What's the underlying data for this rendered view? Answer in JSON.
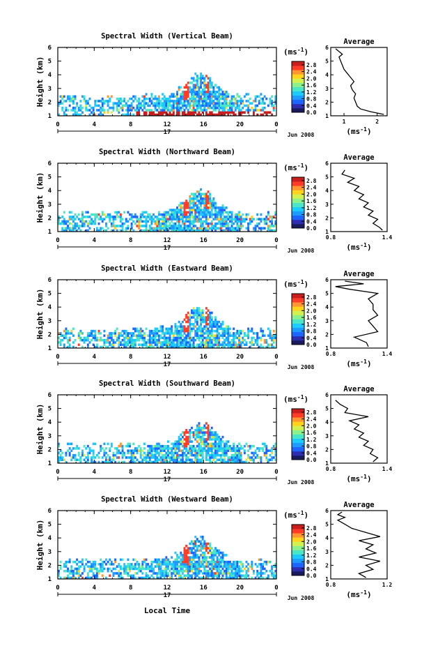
{
  "figure": {
    "unit_label": "(ms",
    "unit_exp": "-1",
    "unit_close": ")",
    "date_label": "Jun 2008",
    "day_label": "17",
    "xlabel": "Local Time",
    "ylabel": "Height (km)",
    "avg_title": "Average",
    "colors": {
      "palette": [
        "#1a1a5e",
        "#2d2db0",
        "#1e64ff",
        "#1e9bff",
        "#1ecbff",
        "#4be6c8",
        "#8cf08c",
        "#d2f050",
        "#ffd21e",
        "#ff9632",
        "#ff3c28",
        "#c81e1e"
      ]
    }
  },
  "chart_data": [
    {
      "type": "heatmap",
      "title": "Spectral Width (Vertical Beam)",
      "x_ticks": [
        "0",
        "4",
        "8",
        "12",
        "16",
        "20",
        "0"
      ],
      "xlim": [
        0,
        24
      ],
      "y_ticks": [
        "1",
        "2",
        "3",
        "4",
        "5",
        "6"
      ],
      "ylim": [
        1,
        6
      ],
      "colorbar_ticks": [
        "0.0",
        "0.4",
        "0.8",
        "1.2",
        "1.6",
        "2.0",
        "2.4",
        "2.8"
      ],
      "colorbar_range": [
        0.0,
        3.0
      ],
      "average_profile": {
        "x_ticks": [
          "1",
          "2"
        ],
        "xlim": [
          0.6,
          2.3
        ],
        "height": [
          1.1,
          1.3,
          1.5,
          1.7,
          2.0,
          2.3,
          2.6,
          2.9,
          3.2,
          3.5,
          3.8,
          4.1,
          4.4,
          4.7,
          5.0,
          5.3,
          5.5,
          5.7,
          5.9
        ],
        "value": [
          2.2,
          1.8,
          1.5,
          1.4,
          1.35,
          1.3,
          1.35,
          1.25,
          1.2,
          1.3,
          1.2,
          1.1,
          1.0,
          0.95,
          0.9,
          0.85,
          0.95,
          0.85,
          0.75
        ]
      }
    },
    {
      "type": "heatmap",
      "title": "Spectral Width (Northward Beam)",
      "x_ticks": [
        "0",
        "4",
        "8",
        "12",
        "16",
        "20",
        "0"
      ],
      "xlim": [
        0,
        24
      ],
      "y_ticks": [
        "1",
        "2",
        "3",
        "4",
        "5",
        "6"
      ],
      "ylim": [
        1,
        6
      ],
      "colorbar_ticks": [
        "0.0",
        "0.4",
        "0.8",
        "1.2",
        "1.6",
        "2.0",
        "2.4",
        "2.8"
      ],
      "colorbar_range": [
        0.0,
        3.0
      ],
      "average_profile": {
        "x_ticks": [
          "0.8",
          "1.4"
        ],
        "xlim": [
          0.8,
          1.4
        ],
        "height": [
          1.1,
          1.3,
          1.6,
          1.9,
          2.2,
          2.5,
          2.8,
          3.1,
          3.4,
          3.7,
          4.0,
          4.3,
          4.6,
          4.9,
          5.2,
          5.5
        ],
        "value": [
          1.35,
          1.32,
          1.25,
          1.3,
          1.2,
          1.25,
          1.15,
          1.2,
          1.1,
          1.15,
          1.05,
          1.1,
          0.98,
          1.05,
          0.92,
          0.95
        ]
      }
    },
    {
      "type": "heatmap",
      "title": "Spectral Width (Eastward Beam)",
      "x_ticks": [
        "0",
        "4",
        "8",
        "12",
        "16",
        "20",
        "0"
      ],
      "xlim": [
        0,
        24
      ],
      "y_ticks": [
        "1",
        "2",
        "3",
        "4",
        "5",
        "6"
      ],
      "ylim": [
        1,
        6
      ],
      "colorbar_ticks": [
        "0.0",
        "0.4",
        "0.8",
        "1.2",
        "1.6",
        "2.0",
        "2.4",
        "2.8"
      ],
      "colorbar_range": [
        0.0,
        3.0
      ],
      "average_profile": {
        "x_ticks": [
          "0.8",
          "1.4"
        ],
        "xlim": [
          0.8,
          1.4
        ],
        "height": [
          1.1,
          1.4,
          1.8,
          2.2,
          2.6,
          3.0,
          3.4,
          3.8,
          4.2,
          4.6,
          5.0,
          5.3,
          5.5,
          5.7,
          5.9
        ],
        "value": [
          1.2,
          1.18,
          1.05,
          1.3,
          1.25,
          1.2,
          1.3,
          1.25,
          1.25,
          1.2,
          1.3,
          1.0,
          0.85,
          1.15,
          0.95
        ]
      }
    },
    {
      "type": "heatmap",
      "title": "Spectral Width (Southward Beam)",
      "x_ticks": [
        "0",
        "4",
        "8",
        "12",
        "16",
        "20",
        "0"
      ],
      "xlim": [
        0,
        24
      ],
      "y_ticks": [
        "1",
        "2",
        "3",
        "4",
        "5",
        "6"
      ],
      "ylim": [
        1,
        6
      ],
      "colorbar_ticks": [
        "0.0",
        "0.4",
        "0.8",
        "1.2",
        "1.6",
        "2.0",
        "2.4",
        "2.8"
      ],
      "colorbar_range": [
        0.0,
        3.0
      ],
      "average_profile": {
        "x_ticks": [
          "0.8",
          "1.4"
        ],
        "xlim": [
          0.8,
          1.4
        ],
        "height": [
          1.1,
          1.4,
          1.7,
          2.0,
          2.3,
          2.6,
          2.9,
          3.2,
          3.5,
          3.8,
          4.1,
          4.4,
          4.7,
          5.0,
          5.3,
          5.6
        ],
        "value": [
          1.25,
          1.3,
          1.22,
          1.25,
          1.15,
          1.2,
          1.1,
          1.15,
          1.05,
          1.1,
          1.0,
          1.2,
          0.95,
          0.98,
          0.9,
          0.85
        ]
      }
    },
    {
      "type": "heatmap",
      "title": "Spectral Width (Westward Beam)",
      "x_ticks": [
        "0",
        "4",
        "8",
        "12",
        "16",
        "20",
        "0"
      ],
      "xlim": [
        0,
        24
      ],
      "y_ticks": [
        "1",
        "2",
        "3",
        "4",
        "5",
        "6"
      ],
      "ylim": [
        1,
        6
      ],
      "colorbar_ticks": [
        "0.0",
        "0.4",
        "0.8",
        "1.2",
        "1.6",
        "2.0",
        "2.4",
        "2.8"
      ],
      "colorbar_range": [
        0.0,
        3.0
      ],
      "average_profile": {
        "x_ticks": [
          "0.8",
          "1.2"
        ],
        "xlim": [
          0.8,
          1.2
        ],
        "height": [
          1.1,
          1.4,
          1.7,
          2.0,
          2.3,
          2.6,
          2.9,
          3.2,
          3.5,
          3.8,
          4.1,
          4.4,
          4.7,
          5.0,
          5.3,
          5.5,
          5.7,
          5.9
        ],
        "value": [
          1.05,
          1.0,
          1.1,
          1.05,
          1.15,
          1.0,
          1.12,
          1.05,
          1.1,
          1.0,
          1.15,
          1.05,
          0.95,
          0.9,
          0.85,
          0.9,
          0.85,
          0.88
        ]
      }
    }
  ]
}
